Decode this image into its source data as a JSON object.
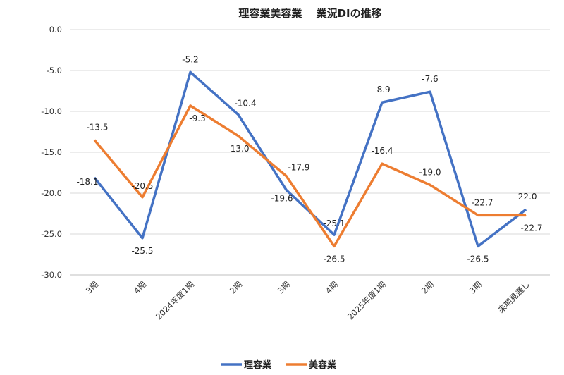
{
  "chart_data": {
    "type": "line",
    "title": "理容業美容業　 業況DIの推移",
    "categories": [
      "3期",
      "4期",
      "2024年度1期",
      "2期",
      "3期",
      "4期",
      "2025年度1期",
      "2期",
      "3期",
      "来期見通し"
    ],
    "series": [
      {
        "name": "理容業",
        "color": "#4472C4",
        "values": [
          -18.1,
          -25.5,
          -5.2,
          -10.4,
          -19.6,
          -25.1,
          -8.9,
          -7.6,
          -26.5,
          -22.0
        ]
      },
      {
        "name": "美容業",
        "color": "#ED7D31",
        "values": [
          -13.5,
          -20.5,
          -9.3,
          -13.0,
          -17.9,
          -26.5,
          -16.4,
          -19.0,
          -22.7,
          -22.7
        ]
      }
    ],
    "yticks": [
      "0.0",
      "-5.0",
      "-10.0",
      "-15.0",
      "-20.0",
      "-25.0",
      "-30.0"
    ],
    "ylim": [
      -30,
      0
    ],
    "grid": true,
    "legend": "bottom",
    "xlabel": "",
    "ylabel": ""
  }
}
